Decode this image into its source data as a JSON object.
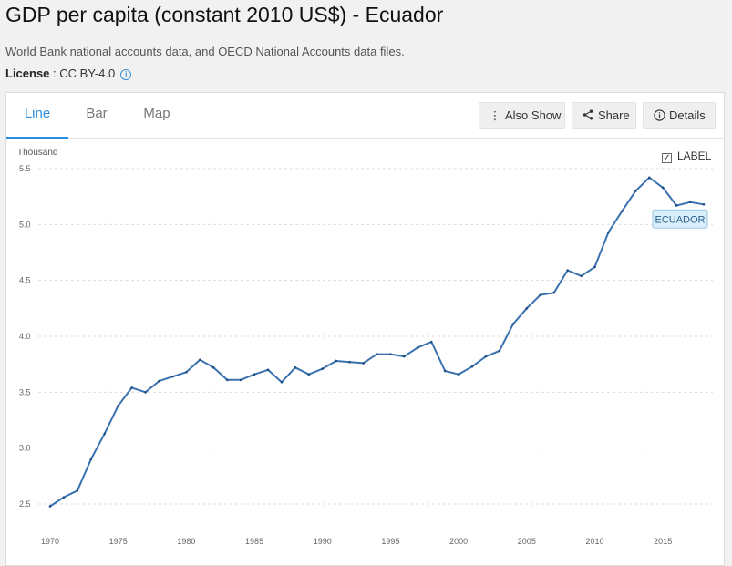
{
  "page": {
    "title": "GDP per capita (constant 2010 US$) - Ecuador",
    "source": "World Bank national accounts data, and OECD National Accounts data files.",
    "license_label": "License",
    "license_value": "CC BY-4.0"
  },
  "tabs": [
    {
      "label": "Line",
      "active": true
    },
    {
      "label": "Bar",
      "active": false
    },
    {
      "label": "Map",
      "active": false
    }
  ],
  "toolbar": {
    "also_show_label": "Also Show",
    "share_label": "Share",
    "details_label": "Details"
  },
  "label_toggle": {
    "text": "LABEL",
    "checked": true
  },
  "colors": {
    "accent": "#2a8ee0",
    "series_line": "#3a72b0",
    "series_label_bg": "#d9eefb",
    "series_label_border": "#9cc9ea"
  },
  "chart_data": {
    "type": "line",
    "unit_label": "Thousand",
    "ylim": [
      2.5,
      5.5
    ],
    "yticks": [
      2.5,
      3.0,
      3.5,
      4.0,
      4.5,
      5.0,
      5.5
    ],
    "xlim": [
      1970,
      2018
    ],
    "xticks": [
      1970,
      1975,
      1980,
      1985,
      1990,
      1995,
      2000,
      2005,
      2010,
      2015
    ],
    "grid": true,
    "series": [
      {
        "name": "ECUADOR",
        "x": [
          1970,
          1971,
          1972,
          1973,
          1974,
          1975,
          1976,
          1977,
          1978,
          1979,
          1980,
          1981,
          1982,
          1983,
          1984,
          1985,
          1986,
          1987,
          1988,
          1989,
          1990,
          1991,
          1992,
          1993,
          1994,
          1995,
          1996,
          1997,
          1998,
          1999,
          2000,
          2001,
          2002,
          2003,
          2004,
          2005,
          2006,
          2007,
          2008,
          2009,
          2010,
          2011,
          2012,
          2013,
          2014,
          2015,
          2016,
          2017,
          2018
        ],
        "values": [
          2.48,
          2.56,
          2.62,
          2.9,
          3.13,
          3.38,
          3.54,
          3.5,
          3.6,
          3.64,
          3.68,
          3.79,
          3.72,
          3.61,
          3.61,
          3.66,
          3.7,
          3.59,
          3.72,
          3.66,
          3.71,
          3.78,
          3.77,
          3.76,
          3.84,
          3.84,
          3.82,
          3.9,
          3.95,
          3.69,
          3.66,
          3.73,
          3.82,
          3.87,
          4.11,
          4.25,
          4.37,
          4.39,
          4.59,
          4.54,
          4.62,
          4.93,
          5.12,
          5.3,
          5.42,
          5.33,
          5.17,
          5.2,
          5.18
        ]
      }
    ]
  }
}
